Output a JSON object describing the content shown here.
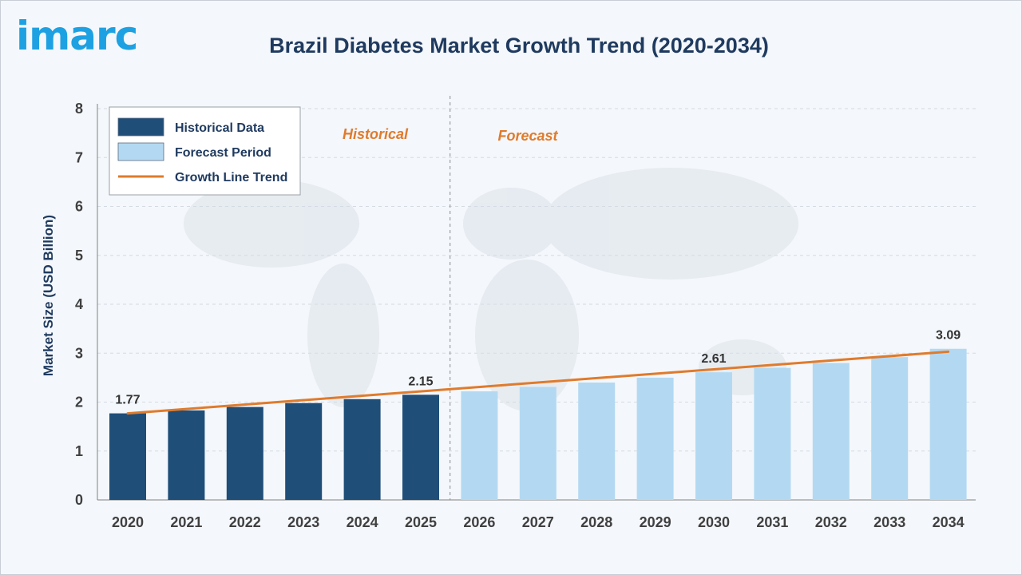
{
  "brand": {
    "logo_text": "imarc"
  },
  "chart_data": {
    "type": "bar",
    "title": "Brazil Diabetes Market Growth Trend (2020-2034)",
    "ylabel": "Market Size (USD Billion)",
    "ylim": [
      0,
      8
    ],
    "yticks": [
      "0",
      "1",
      "2",
      "3",
      "4",
      "5",
      "6",
      "7",
      "8"
    ],
    "categories": [
      "2020",
      "2021",
      "2022",
      "2023",
      "2024",
      "2025",
      "2026",
      "2027",
      "2028",
      "2029",
      "2030",
      "2031",
      "2032",
      "2033",
      "2034"
    ],
    "values": [
      1.77,
      1.83,
      1.9,
      1.98,
      2.06,
      2.15,
      2.22,
      2.31,
      2.4,
      2.5,
      2.61,
      2.7,
      2.8,
      2.92,
      3.09
    ],
    "historical_count": 6,
    "data_labels": [
      {
        "index": 0,
        "text": "1.77"
      },
      {
        "index": 5,
        "text": "2.15"
      },
      {
        "index": 10,
        "text": "2.61"
      },
      {
        "index": 14,
        "text": "3.09"
      }
    ],
    "trend_line": {
      "start": 1.77,
      "end": 3.03
    },
    "period_labels": {
      "historical": "Historical",
      "forecast": "Forecast"
    },
    "legend": {
      "position": "top-left",
      "items": [
        {
          "label": "Historical Data",
          "type": "box",
          "color": "#1f4e79"
        },
        {
          "label": "Forecast Period",
          "type": "box",
          "color": "#b3d9f2"
        },
        {
          "label": "Growth Line Trend",
          "type": "line",
          "color": "#e07b2c"
        }
      ]
    },
    "colors": {
      "historical": "#1f4e79",
      "forecast": "#b3d9f2",
      "trend": "#e07b2c"
    },
    "grid": true
  }
}
